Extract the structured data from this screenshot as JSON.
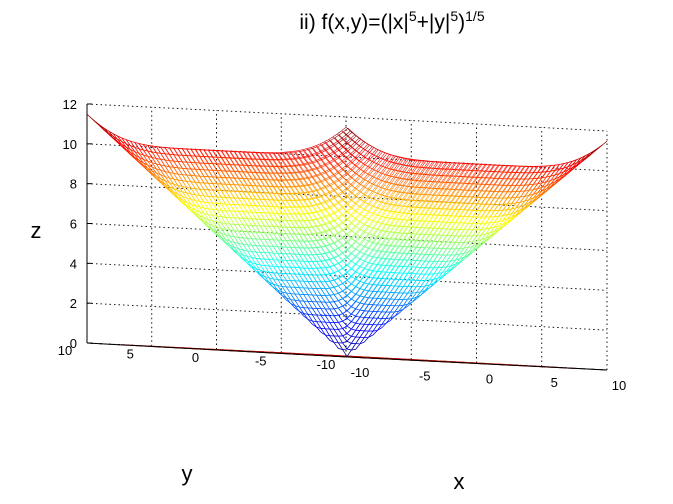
{
  "chart_data": {
    "type": "surface",
    "title": {
      "prefix": "ii)  f(x,y)=(|x|",
      "exp1": "5",
      "mid": "+|y|",
      "exp2": "5",
      "close": ")",
      "exp3": "1/5"
    },
    "function": "(|x|^5+|y|^5)^(1/5)",
    "xlabel": "x",
    "ylabel": "y",
    "zlabel": "z",
    "xlim": [
      -10,
      10
    ],
    "ylim": [
      -10,
      10
    ],
    "zlim": [
      0,
      12
    ],
    "x_ticks": [
      "-10",
      "-5",
      "0",
      "5",
      "10"
    ],
    "y_ticks": [
      "-10",
      "-5",
      "0",
      "5",
      "10"
    ],
    "z_ticks": [
      "0",
      "2",
      "4",
      "6",
      "8",
      "10",
      "12"
    ],
    "mesh_size": 60,
    "contour_levels": [
      2,
      4,
      6,
      8,
      10
    ],
    "colormap": "jet",
    "grid": true,
    "colors": {
      "contour_line": [
        "#0000ff",
        "#00c8ff",
        "#80ff80",
        "#ff9900",
        "#c80000"
      ],
      "grid": "#000000"
    }
  }
}
